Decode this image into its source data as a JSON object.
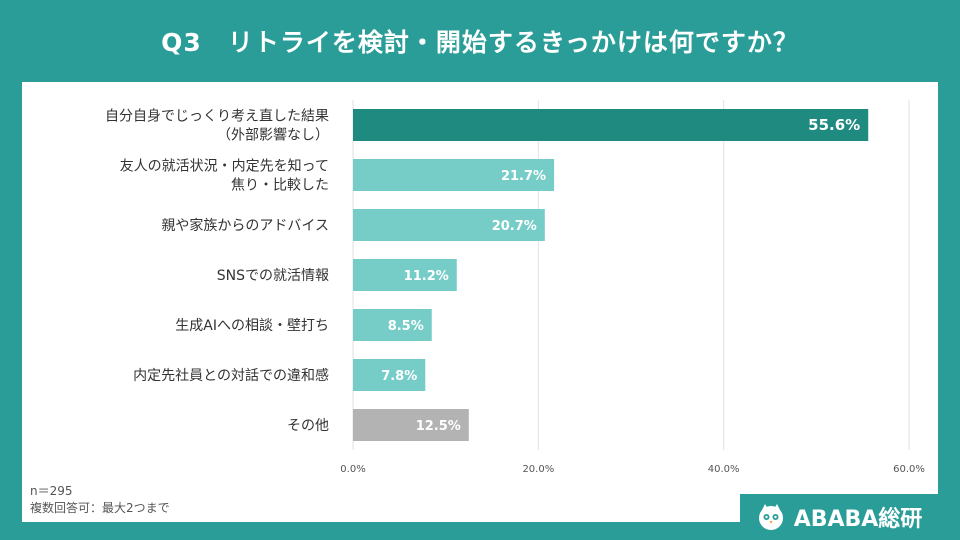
{
  "page": {
    "title": "Q3　リトライを検討・開始するきっかけは何ですか？",
    "note_n": "n＝295",
    "note_multi": "複数回答可：最大2つまで",
    "brand": "ABABA総研"
  },
  "colors": {
    "background": "#2a9d98",
    "bar_top": "#1f8a80",
    "bar": "#76cdc8",
    "bar_other": "#b3b3b3",
    "grid": "#e2e2e2"
  },
  "chart_data": {
    "type": "bar",
    "orientation": "horizontal",
    "categories": [
      [
        "自分自身でじっくり考え直した結果",
        "（外部影響なし）"
      ],
      [
        "友人の就活状況・内定先を知って",
        "焦り・比較した"
      ],
      [
        "親や家族からのアドバイス"
      ],
      [
        "SNSでの就活情報"
      ],
      [
        "生成AIへの相談・壁打ち"
      ],
      [
        "内定先社員との対話での違和感"
      ],
      [
        "その他"
      ]
    ],
    "values": [
      55.6,
      21.7,
      20.7,
      11.2,
      8.5,
      7.8,
      12.5
    ],
    "value_labels": [
      "55.6%",
      "21.7%",
      "20.7%",
      "11.2%",
      "8.5%",
      "7.8%",
      "12.5%"
    ],
    "xlim": [
      0,
      60
    ],
    "ticks": [
      0,
      20,
      40,
      60
    ],
    "tick_labels": [
      "0.0%",
      "20.0%",
      "40.0%",
      "60.0%"
    ],
    "grid": true,
    "unit": "%"
  }
}
